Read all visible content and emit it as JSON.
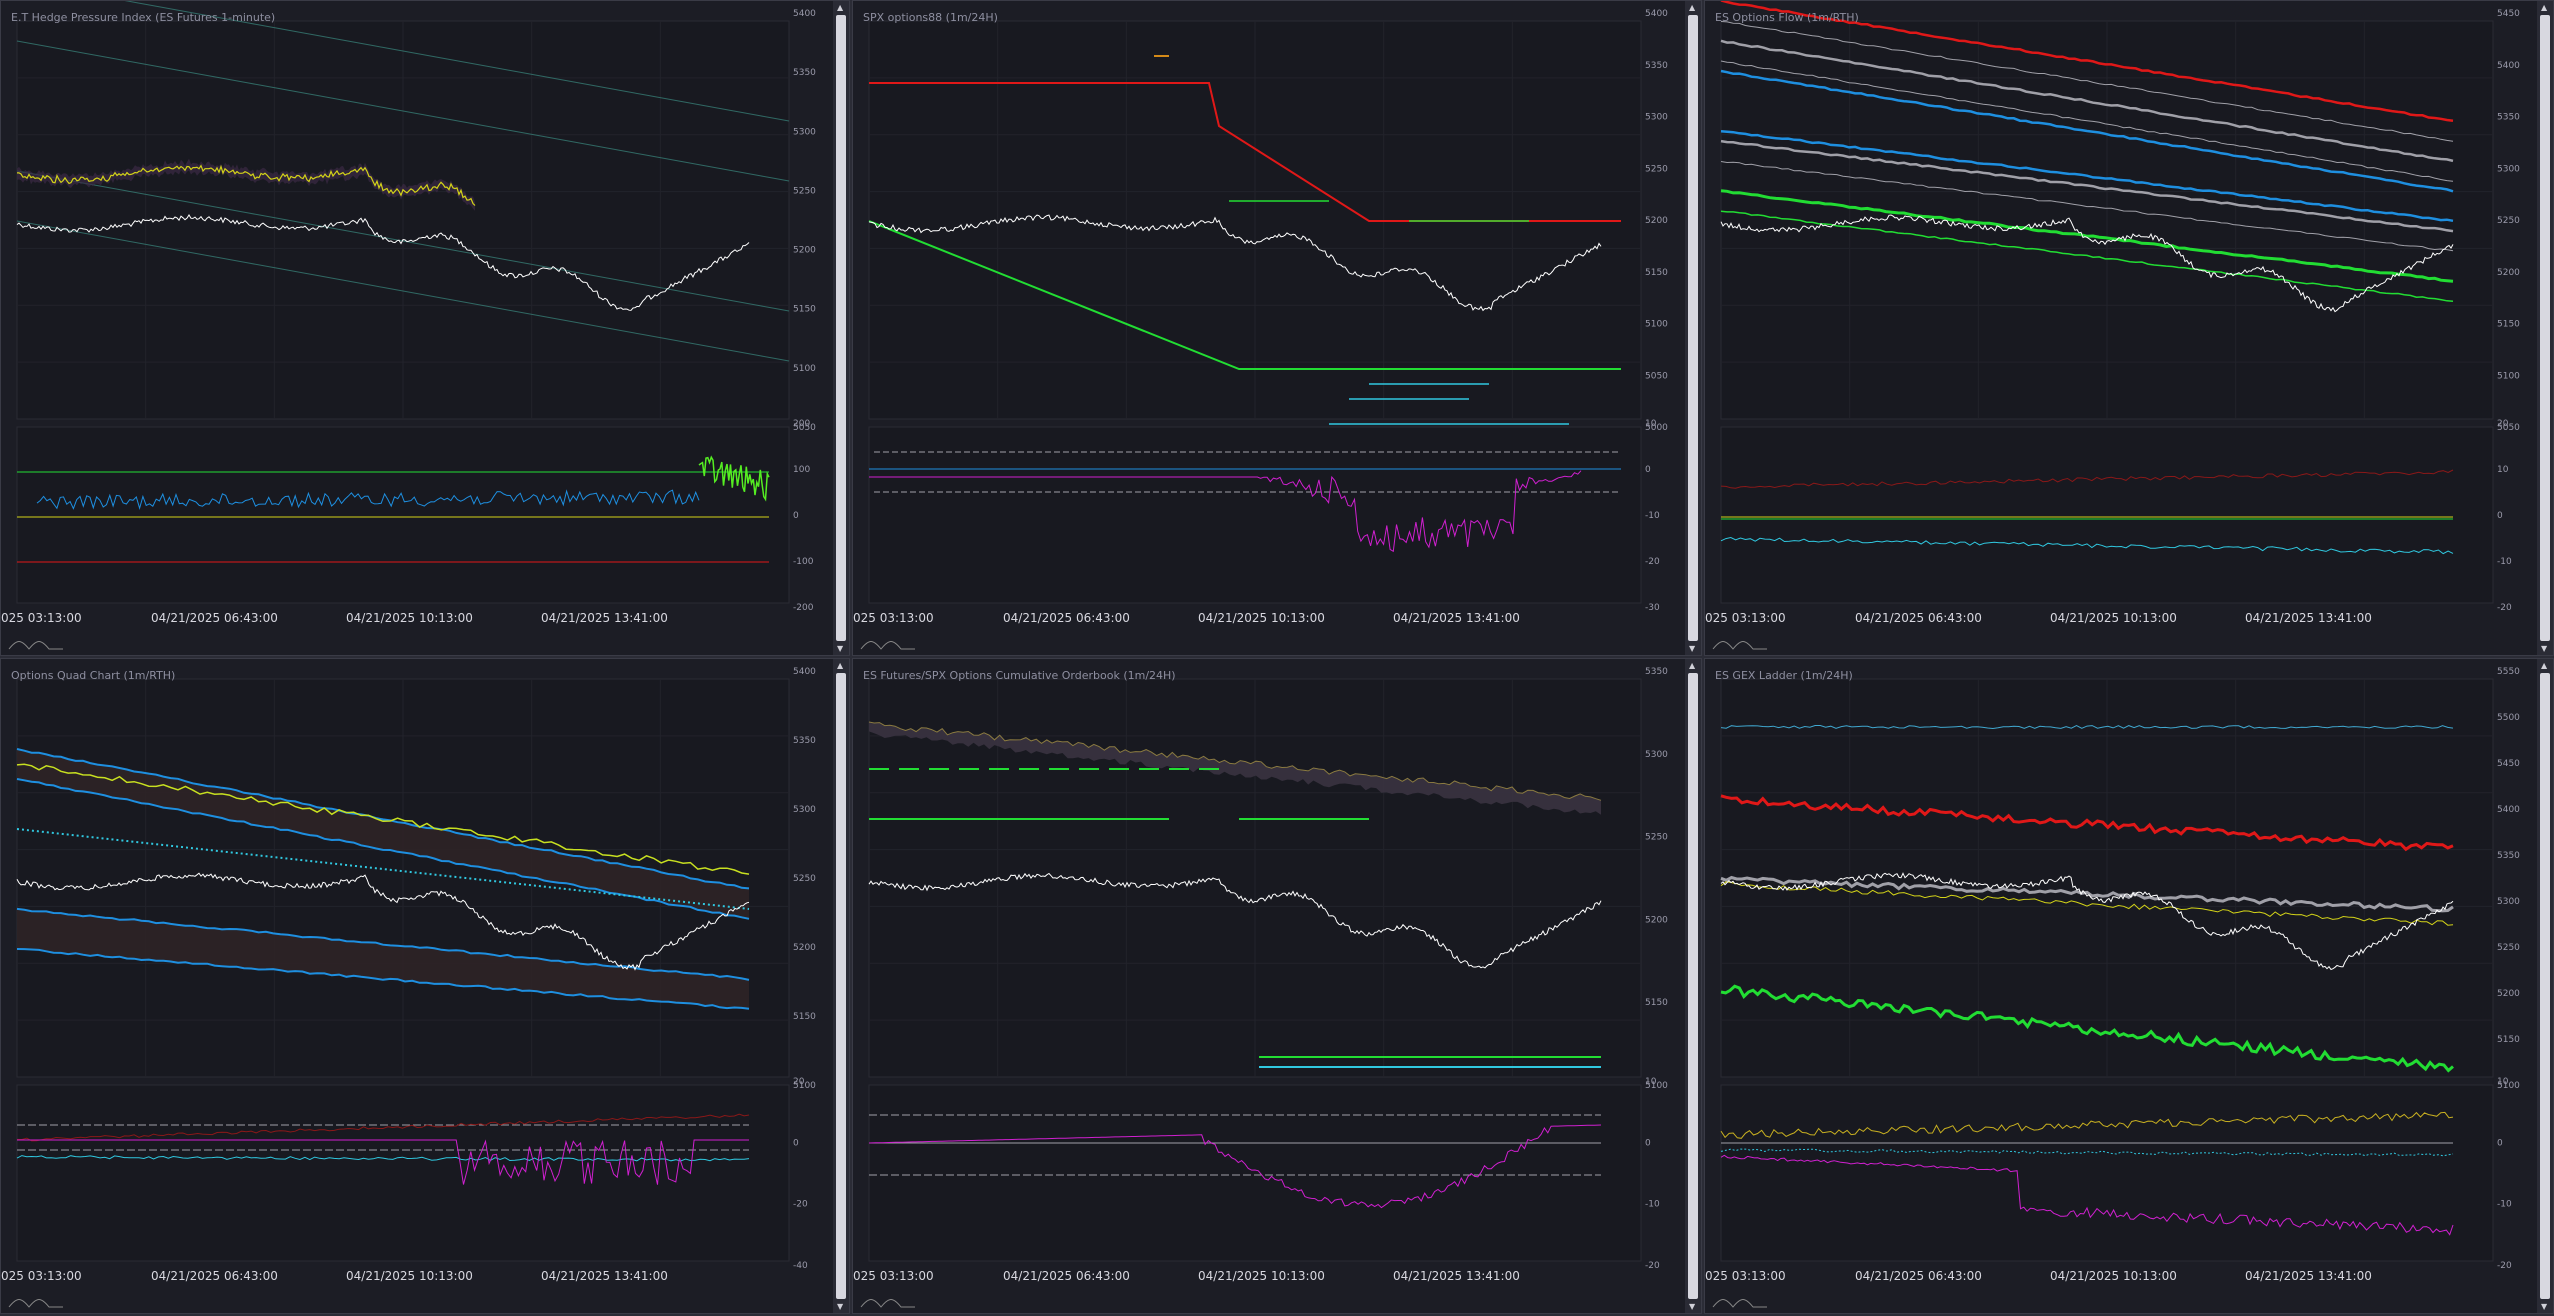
{
  "panels": [
    {
      "id": "p1",
      "title": "E.T Hedge Pressure Index (ES Futures 1-minute)",
      "main_ticks": [
        "5400",
        "5350",
        "5300",
        "5250",
        "5200",
        "5150",
        "5100",
        "5050"
      ],
      "sub_ticks": [
        "200",
        "100",
        "0",
        "-100",
        "-200"
      ],
      "times": [
        "025 03:13:00",
        "04/21/2025 06:43:00",
        "04/21/2025 10:13:00",
        "04/21/2025 13:41:00"
      ]
    },
    {
      "id": "p2",
      "title": "SPX options88 (1m/24H)",
      "main_ticks": [
        "5400",
        "5350",
        "5300",
        "5250",
        "5200",
        "5150",
        "5100",
        "5050",
        "5000"
      ],
      "sub_ticks": [
        "10",
        "0",
        "-10",
        "-20",
        "-30"
      ],
      "times": [
        "025 03:13:00",
        "04/21/2025 06:43:00",
        "04/21/2025 10:13:00",
        "04/21/2025 13:41:00"
      ]
    },
    {
      "id": "p3",
      "title": "ES Options Flow (1m/RTH)",
      "main_ticks": [
        "5450",
        "5400",
        "5350",
        "5300",
        "5250",
        "5200",
        "5150",
        "5100",
        "5050"
      ],
      "sub_ticks": [
        "20",
        "10",
        "0",
        "-10",
        "-20"
      ],
      "times": [
        "025 03:13:00",
        "04/21/2025 06:43:00",
        "04/21/2025 10:13:00",
        "04/21/2025 13:41:00"
      ]
    },
    {
      "id": "p4",
      "title": "Options Quad Chart (1m/RTH)",
      "main_ticks": [
        "5400",
        "5350",
        "5300",
        "5250",
        "5200",
        "5150",
        "5100"
      ],
      "sub_ticks": [
        "20",
        "0",
        "-20",
        "-40"
      ],
      "times": [
        "025 03:13:00",
        "04/21/2025 06:43:00",
        "04/21/2025 10:13:00",
        "04/21/2025 13:41:00"
      ]
    },
    {
      "id": "p5",
      "title": "ES Futures/SPX Options Cumulative Orderbook (1m/24H)",
      "main_ticks": [
        "5350",
        "5300",
        "5250",
        "5200",
        "5150",
        "5100"
      ],
      "sub_ticks": [
        "10",
        "0",
        "-10",
        "-20"
      ],
      "times": [
        "025 03:13:00",
        "04/21/2025 06:43:00",
        "04/21/2025 10:13:00",
        "04/21/2025 13:41:00"
      ]
    },
    {
      "id": "p6",
      "title": "ES GEX Ladder (1m/24H)",
      "main_ticks": [
        "5550",
        "5500",
        "5450",
        "5400",
        "5350",
        "5300",
        "5250",
        "5200",
        "5150",
        "5100"
      ],
      "sub_ticks": [
        "10",
        "0",
        "-10",
        "-20"
      ],
      "times": [
        "025 03:13:00",
        "04/21/2025 06:43:00",
        "04/21/2025 10:13:00",
        "04/21/2025 13:41:00"
      ]
    }
  ],
  "colors": {
    "bg": "#1c1d25",
    "white": "#ffffff",
    "red": "#e01818",
    "green": "#22dd33",
    "blue": "#1e8fe0",
    "yellow": "#d4d418",
    "orange": "#d48a18",
    "magenta": "#d020d0",
    "cyan": "#30c8e0",
    "gray": "#a0a0a8",
    "teal": "#3a8a80"
  }
}
